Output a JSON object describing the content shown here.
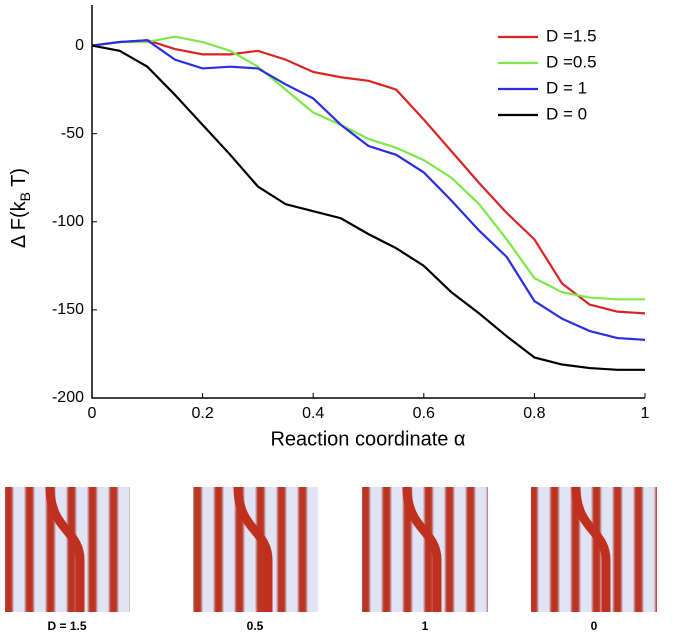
{
  "chart_data": {
    "type": "line",
    "ylabel": "Δ F(k",
    "ylabel_sub": "B",
    "ylabel_end": " T)",
    "xlabel": "Reaction coordinate α",
    "x": [
      0,
      0.05,
      0.1,
      0.15,
      0.2,
      0.25,
      0.3,
      0.35,
      0.4,
      0.45,
      0.5,
      0.55,
      0.6,
      0.65,
      0.7,
      0.75,
      0.8,
      0.85,
      0.9,
      0.95,
      1
    ],
    "series": [
      {
        "name": "D =1.5",
        "color": "#d92323",
        "values": [
          0,
          2,
          3,
          -2,
          -5,
          -5,
          -3,
          -8,
          -15,
          -18,
          -20,
          -25,
          -42,
          -60,
          -78,
          -95,
          -110,
          -135,
          -147,
          -151,
          -152
        ]
      },
      {
        "name": "D =0.5",
        "color": "#7ee84a",
        "values": [
          0,
          2,
          2,
          5,
          2,
          -3,
          -12,
          -25,
          -38,
          -45,
          -53,
          -58,
          -65,
          -75,
          -90,
          -110,
          -132,
          -140,
          -143,
          -144,
          -144
        ]
      },
      {
        "name": "D = 1",
        "color": "#2a2ee0",
        "values": [
          0,
          2,
          3,
          -8,
          -13,
          -12,
          -13,
          -22,
          -30,
          -45,
          -57,
          -62,
          -72,
          -88,
          -105,
          -120,
          -145,
          -155,
          -162,
          -166,
          -167
        ]
      },
      {
        "name": "D = 0",
        "color": "#000000",
        "values": [
          0,
          -3,
          -12,
          -28,
          -45,
          -62,
          -80,
          -90,
          -94,
          -98,
          -107,
          -115,
          -125,
          -140,
          -152,
          -165,
          -177,
          -181,
          -183,
          -184,
          -184
        ]
      }
    ],
    "xlim": [
      0,
      1
    ],
    "xticks": [
      0,
      0.2,
      0.4,
      0.6,
      0.8,
      1
    ],
    "ylim": [
      -200,
      23
    ],
    "yticks": [
      0,
      -50,
      -100,
      -150,
      -200
    ],
    "grid": false,
    "legend": "upper right",
    "panels": [
      "D = 1.5",
      "0.5",
      "1",
      "0"
    ]
  }
}
